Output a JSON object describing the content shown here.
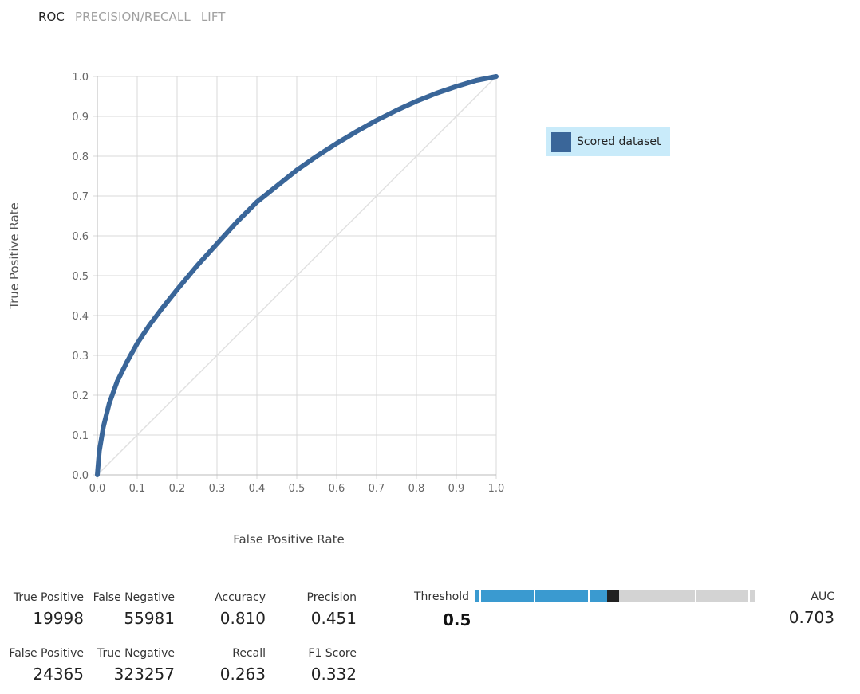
{
  "tabs": [
    {
      "label": "ROC",
      "active": true
    },
    {
      "label": "PRECISION/RECALL",
      "active": false
    },
    {
      "label": "LIFT",
      "active": false
    }
  ],
  "chart_data": {
    "type": "line",
    "xlabel": "False Positive Rate",
    "ylabel": "True Positive Rate",
    "xlim": [
      0,
      1
    ],
    "ylim": [
      0,
      1
    ],
    "grid": true,
    "legend_position": "right",
    "x_ticks": [
      "0.0",
      "0.1",
      "0.2",
      "0.3",
      "0.4",
      "0.5",
      "0.6",
      "0.7",
      "0.8",
      "0.9",
      "1.0"
    ],
    "y_ticks": [
      "0.0",
      "0.1",
      "0.2",
      "0.3",
      "0.4",
      "0.5",
      "0.6",
      "0.7",
      "0.8",
      "0.9",
      "1.0"
    ],
    "series": [
      {
        "name": "Scored dataset",
        "color": "#3a6699",
        "x": [
          0.0,
          0.005,
          0.015,
          0.03,
          0.05,
          0.075,
          0.1,
          0.13,
          0.16,
          0.2,
          0.25,
          0.3,
          0.35,
          0.4,
          0.45,
          0.5,
          0.55,
          0.6,
          0.65,
          0.7,
          0.75,
          0.8,
          0.85,
          0.9,
          0.95,
          1.0
        ],
        "y": [
          0.0,
          0.06,
          0.12,
          0.18,
          0.235,
          0.285,
          0.33,
          0.375,
          0.415,
          0.465,
          0.525,
          0.58,
          0.635,
          0.685,
          0.725,
          0.765,
          0.8,
          0.832,
          0.862,
          0.89,
          0.915,
          0.938,
          0.958,
          0.975,
          0.99,
          1.0
        ]
      }
    ],
    "reference_line": {
      "x": [
        0,
        1
      ],
      "y": [
        0,
        1
      ],
      "color": "#e0e0e0"
    }
  },
  "legend": {
    "label": "Scored dataset",
    "color": "#3a6699"
  },
  "metrics": {
    "true_positive": {
      "label": "True Positive",
      "value": "19998"
    },
    "false_negative": {
      "label": "False Negative",
      "value": "55981"
    },
    "false_positive": {
      "label": "False Positive",
      "value": "24365"
    },
    "true_negative": {
      "label": "True Negative",
      "value": "323257"
    },
    "accuracy": {
      "label": "Accuracy",
      "value": "0.810"
    },
    "recall": {
      "label": "Recall",
      "value": "0.263"
    },
    "precision": {
      "label": "Precision",
      "value": "0.451"
    },
    "f1": {
      "label": "F1 Score",
      "value": "0.332"
    }
  },
  "threshold": {
    "label": "Threshold",
    "value": "0.5",
    "fraction": 0.5
  },
  "auc": {
    "label": "AUC",
    "value": "0.703"
  }
}
